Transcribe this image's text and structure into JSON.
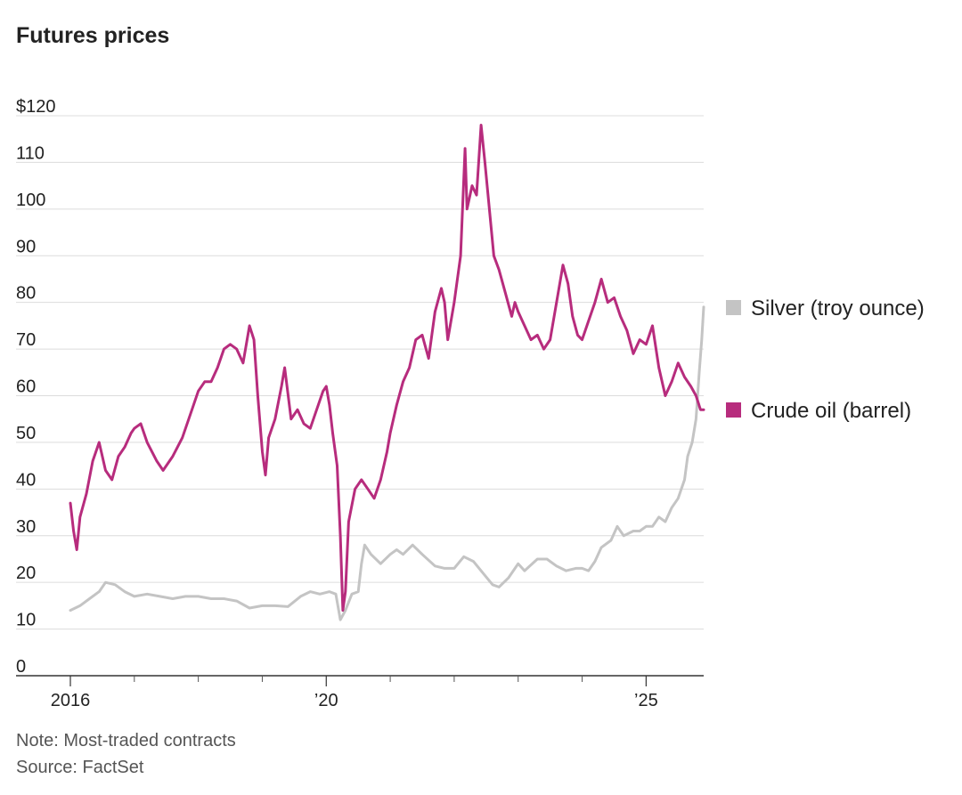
{
  "chart_data": {
    "type": "line",
    "title": "Futures prices",
    "y_currency_prefix": "$",
    "ylim": [
      0,
      120
    ],
    "y_ticks": [
      0,
      10,
      20,
      30,
      40,
      50,
      60,
      70,
      80,
      90,
      100,
      110,
      120
    ],
    "y_tick_labels": [
      "0",
      "10",
      "20",
      "30",
      "40",
      "50",
      "60",
      "70",
      "80",
      "90",
      "100",
      "110",
      "$120"
    ],
    "xlim": [
      2016.0,
      2025.9
    ],
    "x_ticks_labeled": [
      {
        "value": 2016,
        "label": "2016"
      },
      {
        "value": 2020,
        "label": "’20"
      },
      {
        "value": 2025,
        "label": "’25"
      }
    ],
    "x_ticks_minor": [
      2017,
      2018,
      2019,
      2021,
      2022,
      2023,
      2024
    ],
    "grid": true,
    "legend_placement": "right",
    "series": [
      {
        "name": "Silver (troy ounce)",
        "color": "#c4c4c4",
        "points": [
          [
            2016.0,
            14
          ],
          [
            2016.15,
            15
          ],
          [
            2016.3,
            16.5
          ],
          [
            2016.45,
            18
          ],
          [
            2016.55,
            20
          ],
          [
            2016.7,
            19.5
          ],
          [
            2016.85,
            18
          ],
          [
            2017.0,
            17
          ],
          [
            2017.2,
            17.5
          ],
          [
            2017.4,
            17
          ],
          [
            2017.6,
            16.5
          ],
          [
            2017.8,
            17
          ],
          [
            2018.0,
            17
          ],
          [
            2018.2,
            16.5
          ],
          [
            2018.4,
            16.5
          ],
          [
            2018.6,
            16
          ],
          [
            2018.8,
            14.5
          ],
          [
            2019.0,
            15
          ],
          [
            2019.2,
            15
          ],
          [
            2019.4,
            14.8
          ],
          [
            2019.6,
            17
          ],
          [
            2019.75,
            18
          ],
          [
            2019.9,
            17.5
          ],
          [
            2020.05,
            18
          ],
          [
            2020.15,
            17.5
          ],
          [
            2020.22,
            12
          ],
          [
            2020.3,
            14
          ],
          [
            2020.4,
            17.5
          ],
          [
            2020.5,
            18
          ],
          [
            2020.55,
            24
          ],
          [
            2020.6,
            28
          ],
          [
            2020.7,
            26
          ],
          [
            2020.85,
            24
          ],
          [
            2021.0,
            26
          ],
          [
            2021.1,
            27
          ],
          [
            2021.2,
            26
          ],
          [
            2021.35,
            28
          ],
          [
            2021.5,
            26
          ],
          [
            2021.7,
            23.5
          ],
          [
            2021.85,
            23
          ],
          [
            2022.0,
            23
          ],
          [
            2022.15,
            25.5
          ],
          [
            2022.3,
            24.5
          ],
          [
            2022.45,
            22
          ],
          [
            2022.6,
            19.5
          ],
          [
            2022.7,
            19
          ],
          [
            2022.85,
            21
          ],
          [
            2023.0,
            24
          ],
          [
            2023.1,
            22.5
          ],
          [
            2023.3,
            25
          ],
          [
            2023.45,
            25
          ],
          [
            2023.6,
            23.5
          ],
          [
            2023.75,
            22.5
          ],
          [
            2023.9,
            23
          ],
          [
            2024.0,
            23
          ],
          [
            2024.1,
            22.5
          ],
          [
            2024.2,
            24.5
          ],
          [
            2024.3,
            27.5
          ],
          [
            2024.45,
            29
          ],
          [
            2024.55,
            32
          ],
          [
            2024.65,
            30
          ],
          [
            2024.8,
            31
          ],
          [
            2024.9,
            31
          ],
          [
            2025.0,
            32
          ],
          [
            2025.1,
            32
          ],
          [
            2025.2,
            34
          ],
          [
            2025.3,
            33
          ],
          [
            2025.4,
            36
          ],
          [
            2025.5,
            38
          ],
          [
            2025.6,
            42
          ],
          [
            2025.65,
            47
          ],
          [
            2025.72,
            50
          ],
          [
            2025.78,
            55
          ],
          [
            2025.83,
            65
          ],
          [
            2025.87,
            72
          ],
          [
            2025.9,
            79
          ]
        ]
      },
      {
        "name": "Crude oil (barrel)",
        "color": "#b72c7d",
        "points": [
          [
            2016.0,
            37
          ],
          [
            2016.05,
            31
          ],
          [
            2016.1,
            27
          ],
          [
            2016.15,
            34
          ],
          [
            2016.25,
            39
          ],
          [
            2016.35,
            46
          ],
          [
            2016.45,
            50
          ],
          [
            2016.55,
            44
          ],
          [
            2016.65,
            42
          ],
          [
            2016.75,
            47
          ],
          [
            2016.85,
            49
          ],
          [
            2016.95,
            52
          ],
          [
            2017.0,
            53
          ],
          [
            2017.1,
            54
          ],
          [
            2017.2,
            50
          ],
          [
            2017.35,
            46
          ],
          [
            2017.45,
            44
          ],
          [
            2017.6,
            47
          ],
          [
            2017.75,
            51
          ],
          [
            2017.9,
            57
          ],
          [
            2018.0,
            61
          ],
          [
            2018.1,
            63
          ],
          [
            2018.2,
            63
          ],
          [
            2018.3,
            66
          ],
          [
            2018.4,
            70
          ],
          [
            2018.5,
            71
          ],
          [
            2018.6,
            70
          ],
          [
            2018.7,
            67
          ],
          [
            2018.8,
            75
          ],
          [
            2018.87,
            72
          ],
          [
            2018.93,
            60
          ],
          [
            2019.0,
            48
          ],
          [
            2019.05,
            43
          ],
          [
            2019.1,
            51
          ],
          [
            2019.2,
            55
          ],
          [
            2019.3,
            62
          ],
          [
            2019.35,
            66
          ],
          [
            2019.45,
            55
          ],
          [
            2019.55,
            57
          ],
          [
            2019.65,
            54
          ],
          [
            2019.75,
            53
          ],
          [
            2019.85,
            57
          ],
          [
            2019.95,
            61
          ],
          [
            2020.0,
            62
          ],
          [
            2020.05,
            58
          ],
          [
            2020.1,
            52
          ],
          [
            2020.17,
            45
          ],
          [
            2020.22,
            30
          ],
          [
            2020.26,
            14
          ],
          [
            2020.3,
            18
          ],
          [
            2020.35,
            33
          ],
          [
            2020.45,
            40
          ],
          [
            2020.55,
            42
          ],
          [
            2020.65,
            40
          ],
          [
            2020.75,
            38
          ],
          [
            2020.85,
            42
          ],
          [
            2020.95,
            48
          ],
          [
            2021.0,
            52
          ],
          [
            2021.1,
            58
          ],
          [
            2021.2,
            63
          ],
          [
            2021.3,
            66
          ],
          [
            2021.4,
            72
          ],
          [
            2021.5,
            73
          ],
          [
            2021.6,
            68
          ],
          [
            2021.7,
            78
          ],
          [
            2021.8,
            83
          ],
          [
            2021.85,
            80
          ],
          [
            2021.9,
            72
          ],
          [
            2022.0,
            80
          ],
          [
            2022.1,
            90
          ],
          [
            2022.17,
            113
          ],
          [
            2022.2,
            100
          ],
          [
            2022.28,
            105
          ],
          [
            2022.35,
            103
          ],
          [
            2022.42,
            118
          ],
          [
            2022.48,
            110
          ],
          [
            2022.55,
            100
          ],
          [
            2022.62,
            90
          ],
          [
            2022.7,
            87
          ],
          [
            2022.8,
            82
          ],
          [
            2022.9,
            77
          ],
          [
            2022.95,
            80
          ],
          [
            2023.0,
            78
          ],
          [
            2023.1,
            75
          ],
          [
            2023.2,
            72
          ],
          [
            2023.3,
            73
          ],
          [
            2023.4,
            70
          ],
          [
            2023.5,
            72
          ],
          [
            2023.6,
            80
          ],
          [
            2023.7,
            88
          ],
          [
            2023.78,
            84
          ],
          [
            2023.85,
            77
          ],
          [
            2023.93,
            73
          ],
          [
            2024.0,
            72
          ],
          [
            2024.1,
            76
          ],
          [
            2024.2,
            80
          ],
          [
            2024.3,
            85
          ],
          [
            2024.4,
            80
          ],
          [
            2024.5,
            81
          ],
          [
            2024.6,
            77
          ],
          [
            2024.7,
            74
          ],
          [
            2024.8,
            69
          ],
          [
            2024.9,
            72
          ],
          [
            2025.0,
            71
          ],
          [
            2025.1,
            75
          ],
          [
            2025.2,
            66
          ],
          [
            2025.3,
            60
          ],
          [
            2025.4,
            63
          ],
          [
            2025.5,
            67
          ],
          [
            2025.6,
            64
          ],
          [
            2025.7,
            62
          ],
          [
            2025.78,
            60
          ],
          [
            2025.85,
            57
          ],
          [
            2025.9,
            57
          ]
        ]
      }
    ]
  },
  "notes": [
    "Note: Most-traded contracts",
    "Source: FactSet"
  ]
}
